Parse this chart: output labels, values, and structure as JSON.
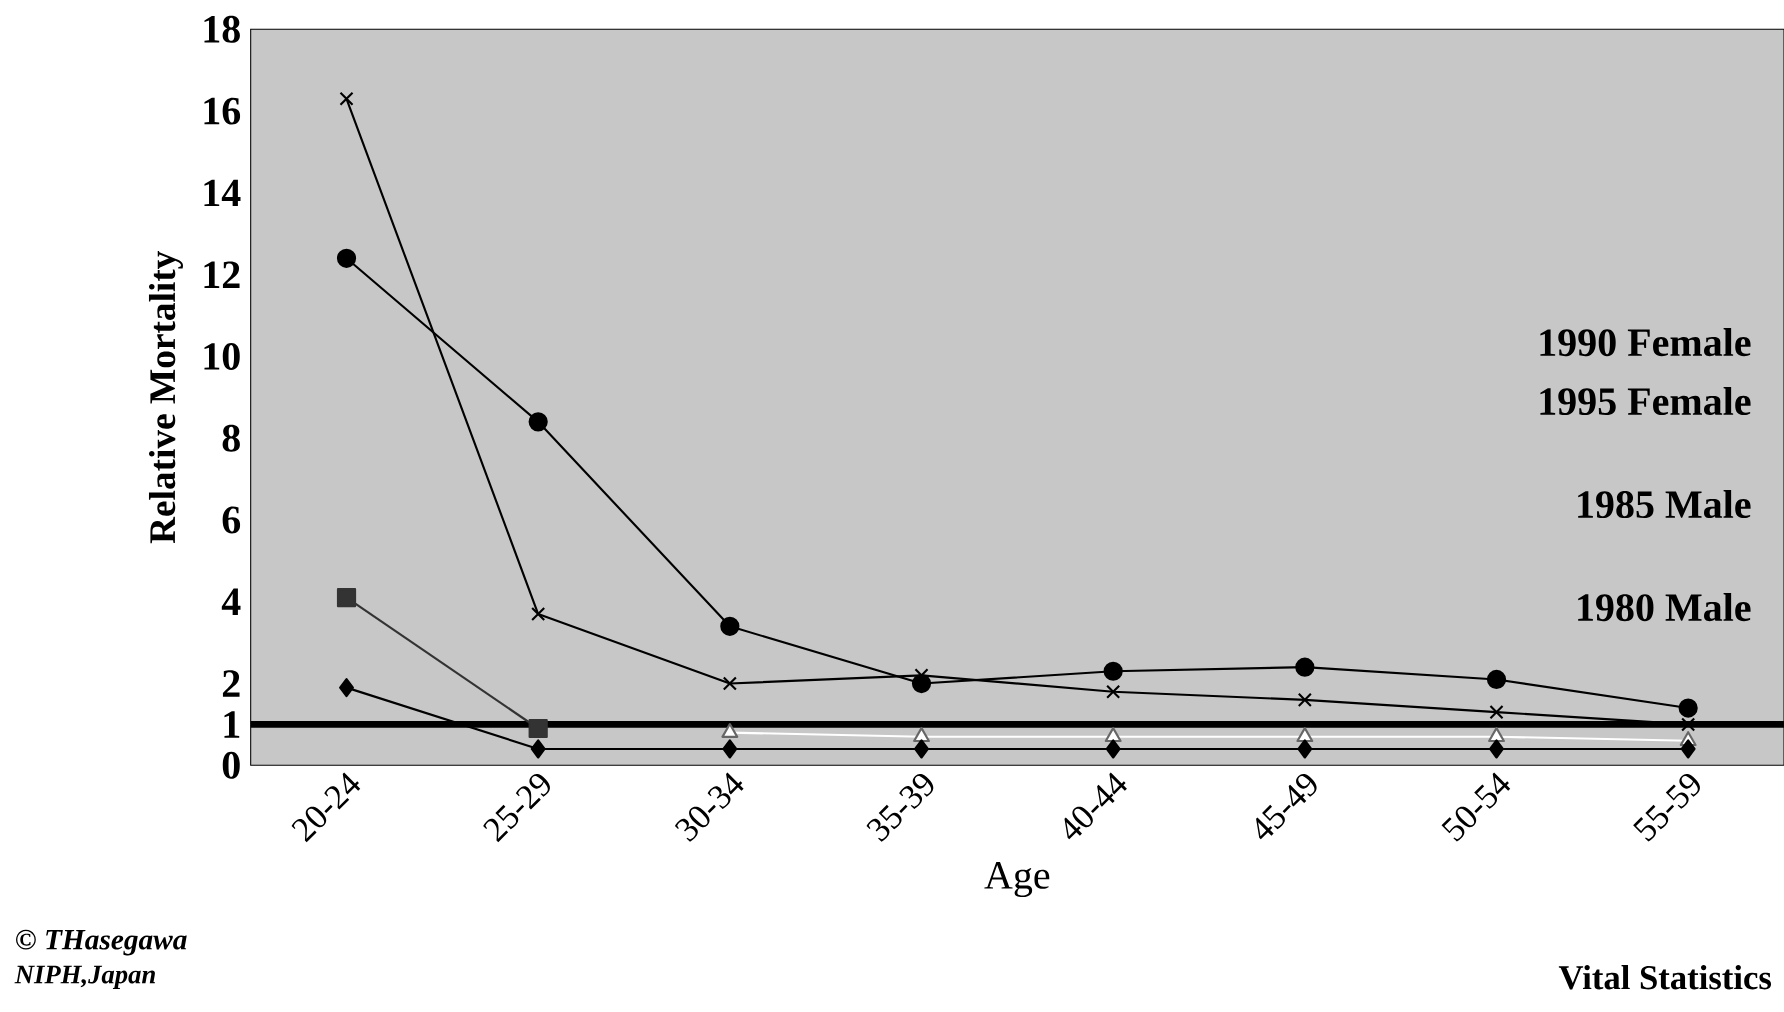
{
  "chart_data": {
    "type": "line",
    "xlabel": "Age",
    "ylabel": "Relative Mortality",
    "categories": [
      "20-24",
      "25-29",
      "30-34",
      "35-39",
      "40-44",
      "45-49",
      "50-54",
      "55-59"
    ],
    "series": [
      {
        "color": "#000000",
        "marker": "cross",
        "values": [
          16.3,
          3.7,
          2.0,
          2.2,
          1.8,
          1.6,
          1.3,
          1.0
        ]
      },
      {
        "color": "#000000",
        "marker": "circle",
        "values": [
          12.4,
          8.4,
          3.4,
          2.0,
          2.3,
          2.4,
          2.1,
          1.4
        ]
      },
      {
        "color": "#333333",
        "marker": "square",
        "values": [
          4.1,
          0.9,
          null,
          null,
          null,
          null,
          null,
          null
        ]
      },
      {
        "color": "#000000",
        "marker": "diamond",
        "values": [
          1.9,
          0.4,
          0.4,
          0.4,
          0.4,
          0.4,
          0.4,
          0.4
        ]
      },
      {
        "color": "#ffffff",
        "marker": "triangle",
        "values": [
          null,
          null,
          0.8,
          0.7,
          0.7,
          0.7,
          0.7,
          0.6
        ]
      }
    ],
    "ylim": [
      0,
      18
    ],
    "yticks": [
      0,
      1,
      2,
      4,
      6,
      8,
      10,
      12,
      14,
      16,
      18
    ],
    "ref_lines": [
      {
        "axis": "y",
        "value": 1,
        "color": "#000000"
      }
    ],
    "legend": false,
    "annotations": [
      "1990 Female",
      "1995 Female",
      "1985 Male",
      "1980 Male",
      "© THasegawa",
      "NIPH,Japan",
      "Vital Statistics"
    ]
  }
}
